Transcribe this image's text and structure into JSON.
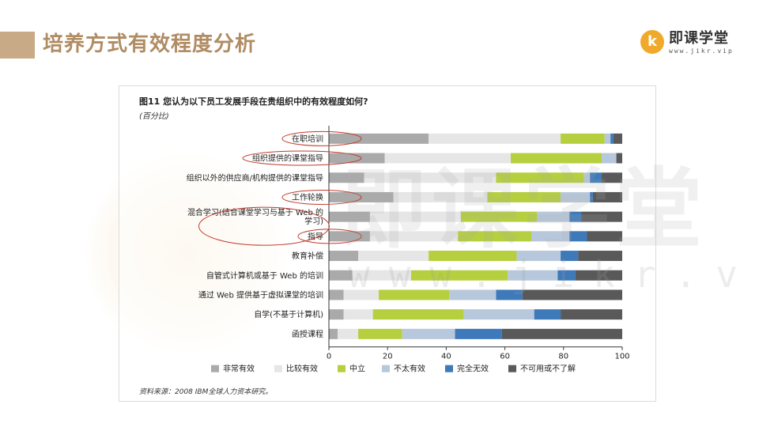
{
  "slide": {
    "title": "培养方式有效程度分析"
  },
  "logo": {
    "badge": "k",
    "name": "即课学堂",
    "url": "www.jikr.vip"
  },
  "watermark": {
    "text": "即课学堂",
    "url": "www.jikr.vip"
  },
  "figure": {
    "title": "图11  您认为以下员工发展手段在贵组织中的有效程度如何?",
    "subtitle": "(百分比)",
    "source": "资料来源：2008 IBM全球人力资本研究。"
  },
  "chart_data": {
    "type": "bar",
    "orientation": "horizontal",
    "stacked": true,
    "categories": [
      "在职培训",
      "组织提供的课堂指导",
      "组织以外的供应商/机构提供的课堂指导",
      "工作轮换",
      "混合学习(结合课堂学习与基于 Web 的学习)",
      "指导",
      "教育补偿",
      "自管式计算机或基于 Web 的培训",
      "通过 Web 提供基于虚拟课堂的培训",
      "自学(不基于计算机)",
      "函授课程"
    ],
    "series": [
      {
        "name": "非常有效",
        "color": "#aaaaaa",
        "values": [
          34,
          19,
          12,
          22,
          14,
          14,
          10,
          8,
          5,
          5,
          3
        ]
      },
      {
        "name": "比较有效",
        "color": "#e6e6e6",
        "values": [
          45,
          43,
          45,
          32,
          31,
          30,
          24,
          20,
          12,
          10,
          7
        ]
      },
      {
        "name": "中立",
        "color": "#b5cf3f",
        "values": [
          15,
          31,
          30,
          25,
          26,
          25,
          30,
          33,
          24,
          31,
          15
        ]
      },
      {
        "name": "不太有效",
        "color": "#b7c8dc",
        "values": [
          2,
          5,
          2,
          10,
          11,
          13,
          15,
          17,
          16,
          24,
          18
        ]
      },
      {
        "name": "完全无效",
        "color": "#3e79b9",
        "values": [
          1,
          0,
          4,
          1,
          4,
          6,
          6,
          6,
          9,
          9,
          16
        ]
      },
      {
        "name": "不可用或不了解",
        "color": "#595959",
        "values": [
          3,
          2,
          7,
          10,
          14,
          12,
          15,
          16,
          34,
          21,
          41
        ]
      }
    ],
    "category_display": [
      [
        "在职培训"
      ],
      [
        "组织提供的课堂指导"
      ],
      [
        "组织以外的供应商/机构提供的课堂指导"
      ],
      [
        "工作轮换"
      ],
      [
        "混合学习(结合课堂学习与基于 Web 的",
        "学习)"
      ],
      [
        "指导"
      ],
      [
        "教育补偿"
      ],
      [
        "自管式计算机或基于 Web 的培训"
      ],
      [
        "通过 Web 提供基于虚拟课堂的培训"
      ],
      [
        "自学(不基于计算机)"
      ],
      [
        "函授课程"
      ]
    ],
    "xlim": [
      0,
      100
    ],
    "xticks": [
      0,
      20,
      40,
      60,
      80,
      100
    ],
    "highlighted_categories": [
      "在职培训",
      "组织提供的课堂指导",
      "工作轮换",
      "混合学习(结合课堂学习与基于 Web 的学习)",
      "指导"
    ],
    "highlight_color": "#c0392b",
    "legend_position": "bottom",
    "grid": false
  }
}
